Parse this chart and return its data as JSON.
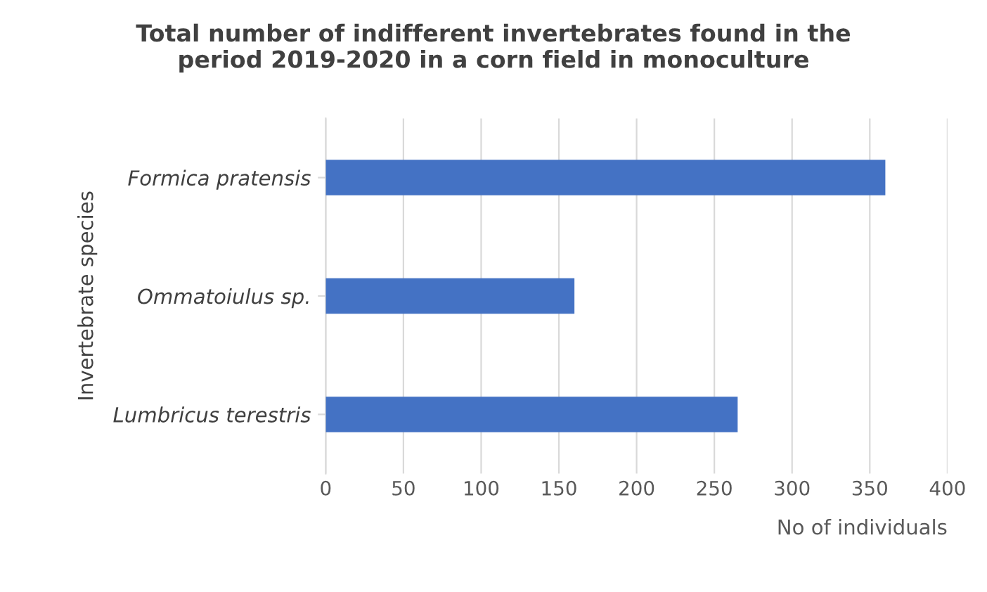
{
  "chart_data": {
    "type": "bar",
    "orientation": "horizontal",
    "title": "Total number of indifferent invertebrates found in the\nperiod 2019-2020 in a corn field in monoculture",
    "xlabel": "No of individuals",
    "ylabel": "Invertebrate species",
    "categories": [
      "Formica pratensis",
      "Ommatoiulus sp.",
      "Lumbricus terestris"
    ],
    "values": [
      360,
      160,
      265
    ],
    "color": "#4472c4",
    "xlim": [
      0,
      400
    ],
    "xticks": [
      0,
      50,
      100,
      150,
      200,
      250,
      300,
      350,
      400
    ],
    "grid": "x"
  }
}
